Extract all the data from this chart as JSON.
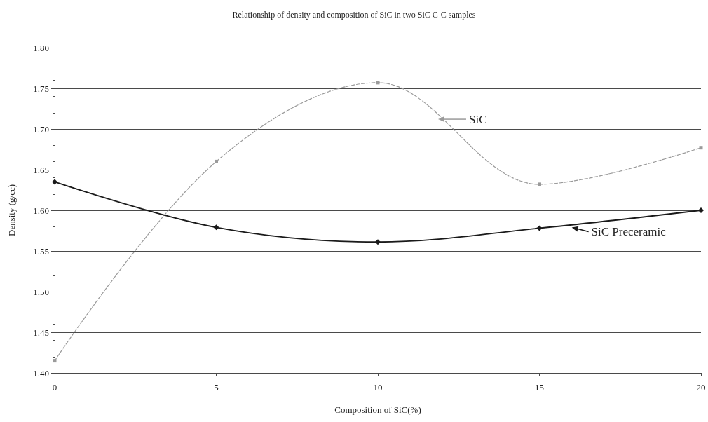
{
  "chart_data": {
    "type": "line",
    "title": "Relationship of density and composition of SiC in two SiC C-C samples",
    "xlabel": "Composition of SiC(%)",
    "ylabel": "Density (g/cc)",
    "x": [
      0,
      5,
      10,
      15,
      20
    ],
    "series": [
      {
        "name": "SiC",
        "color": "#9a9a9a",
        "marker": "square",
        "line_style": "dashed",
        "values": [
          1.415,
          1.66,
          1.757,
          1.632,
          1.677
        ]
      },
      {
        "name": "SiC Preceramic",
        "color": "#1a1a1a",
        "marker": "diamond",
        "line_style": "solid",
        "values": [
          1.635,
          1.579,
          1.561,
          1.578,
          1.6
        ]
      }
    ],
    "xlim": [
      0,
      20
    ],
    "xticks": [
      0,
      5,
      10,
      15,
      20
    ],
    "ylim": [
      1.4,
      1.8
    ],
    "yticks": [
      {
        "value": 1.4,
        "label": "1.40"
      },
      1.45,
      {
        "value": 1.5,
        "label": "1.50"
      },
      1.55,
      {
        "value": 1.6,
        "label": "1.60"
      },
      1.65,
      {
        "value": 1.7,
        "label": "1.70"
      },
      1.75,
      {
        "value": 1.8,
        "label": "1.80"
      }
    ],
    "grid": "y",
    "legend": "right"
  }
}
